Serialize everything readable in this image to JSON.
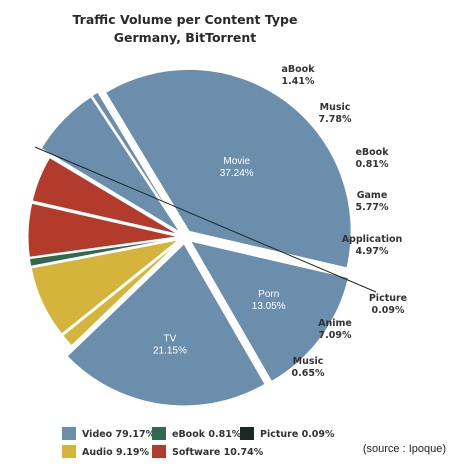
{
  "chart_data": {
    "type": "pie",
    "title": "Traffic Volume per Content Type",
    "subtitle": "Germany, BitTorrent",
    "slices": [
      {
        "name": "TV",
        "percent_label": "21.15%",
        "value": 21.15,
        "group": "Video",
        "label_inside": true
      },
      {
        "name": "aBook",
        "percent_label": "1.41%",
        "value": 1.41,
        "group": "Audio",
        "label_inside": false
      },
      {
        "name": "Music",
        "percent_label": "7.78%",
        "value": 7.78,
        "group": "Audio",
        "label_inside": false
      },
      {
        "name": "eBook",
        "percent_label": "0.81%",
        "value": 0.81,
        "group": "eBook",
        "label_inside": false
      },
      {
        "name": "Game",
        "percent_label": "5.77%",
        "value": 5.77,
        "group": "Software",
        "label_inside": false
      },
      {
        "name": "Application",
        "percent_label": "4.97%",
        "value": 4.97,
        "group": "Software",
        "label_inside": false
      },
      {
        "name": "Picture",
        "percent_label": "0.09%",
        "value": 0.09,
        "group": "Picture",
        "label_inside": false
      },
      {
        "name": "Anime",
        "percent_label": "7.09%",
        "value": 7.09,
        "group": "Video",
        "label_inside": false
      },
      {
        "name": "Music",
        "percent_label": "0.65%",
        "value": 0.65,
        "group": "Video",
        "label_inside": false
      },
      {
        "name": "Movie",
        "percent_label": "37.24%",
        "value": 37.24,
        "group": "Video",
        "label_inside": true
      },
      {
        "name": "Porn",
        "percent_label": "13.05%",
        "value": 13.05,
        "group": "Video",
        "label_inside": true
      }
    ],
    "colors": {
      "Video": "#6b8eac",
      "Audio": "#d4b43a",
      "eBook": "#2e6b4e",
      "Software": "#b23b2c",
      "Picture": "#1a2a22"
    },
    "legend": [
      {
        "group": "Video",
        "label": "Video 79.17%"
      },
      {
        "group": "eBook",
        "label": "eBook 0.81%"
      },
      {
        "group": "Picture",
        "label": "Picture 0.09%"
      },
      {
        "group": "Audio",
        "label": "Audio 9.19%"
      },
      {
        "group": "Software",
        "label": "Software 10.74%"
      }
    ],
    "legend_position": "bottom-left",
    "source": "(source : Ipoque)"
  }
}
